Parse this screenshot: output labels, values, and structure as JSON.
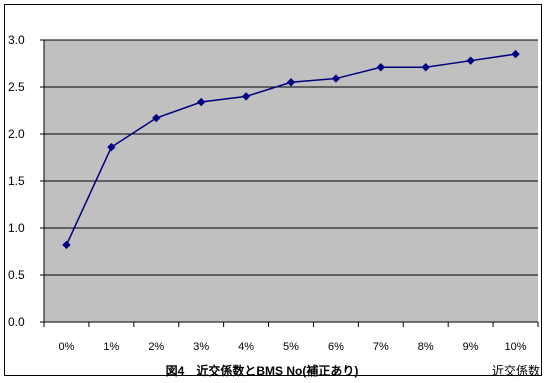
{
  "chart_data": {
    "type": "line",
    "title": "図4　近交係数とBMS No(補正あり)",
    "xlabel": "近交係数",
    "ylabel": "",
    "categories": [
      "0%",
      "1%",
      "2%",
      "3%",
      "4%",
      "5%",
      "6%",
      "7%",
      "8%",
      "9%",
      "10%"
    ],
    "series": [
      {
        "values": [
          0.82,
          1.86,
          2.17,
          2.34,
          2.4,
          2.55,
          2.59,
          2.71,
          2.71,
          2.78,
          2.85
        ]
      }
    ],
    "yticks": [
      "0.0",
      "0.5",
      "1.0",
      "1.5",
      "2.0",
      "2.5",
      "3.0"
    ],
    "ylim": [
      0,
      3.0
    ],
    "grid": true,
    "legend": "none",
    "colors": {
      "plot_background": "#c0c0c0",
      "gridline": "#000000",
      "series_line": "#000080",
      "marker": "#000080"
    }
  }
}
